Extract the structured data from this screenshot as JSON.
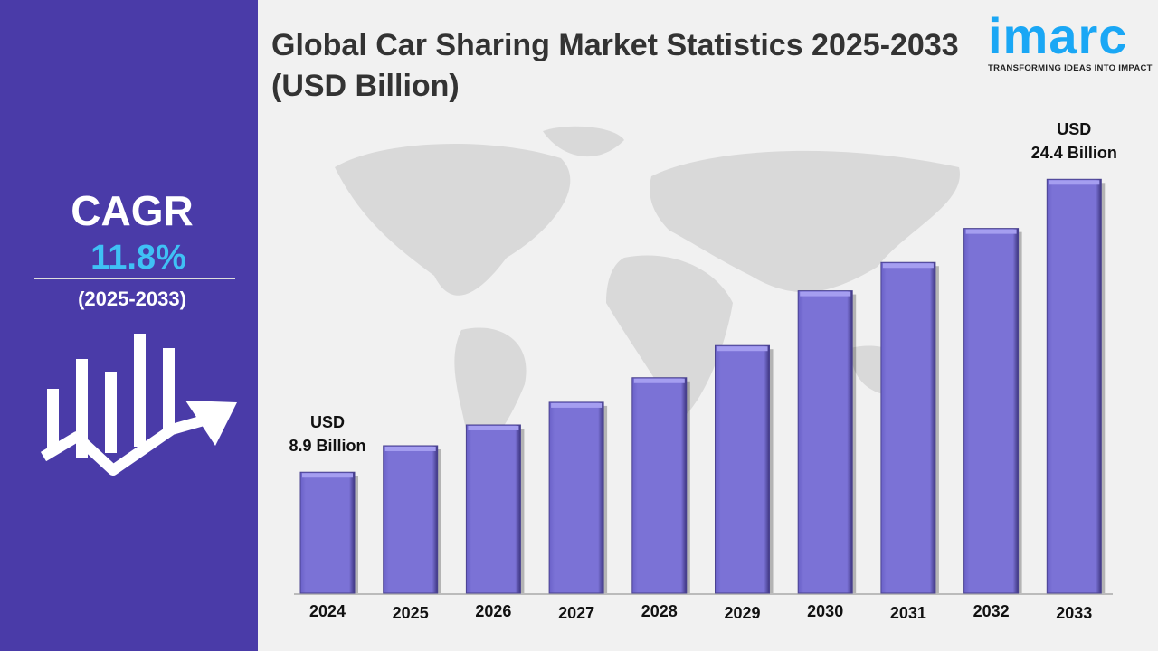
{
  "title": "Global Car Sharing Market Statistics 2025-2033 (USD Billion)",
  "logo": {
    "text": "imarc",
    "tagline": "TRANSFORMING IDEAS INTO IMPACT"
  },
  "cagr": {
    "label": "CAGR",
    "value": "11.8%",
    "period": "(2025-2033)"
  },
  "colors": {
    "panel": "#4a3ba8",
    "bar": "#7b72d6",
    "cagr_value": "#3fc1f5",
    "logo": "#1aa7f5"
  },
  "chart_data": {
    "type": "bar",
    "title": "Global Car Sharing Market Statistics 2025-2033 (USD Billion)",
    "categories": [
      "2024",
      "2025",
      "2026",
      "2027",
      "2028",
      "2029",
      "2030",
      "2031",
      "2032",
      "2033"
    ],
    "values": [
      8.9,
      10.3,
      11.4,
      12.6,
      13.9,
      15.6,
      18.5,
      20.0,
      21.8,
      24.4
    ],
    "annotations": [
      {
        "category": "2024",
        "line1": "USD",
        "line2": "8.9 Billion"
      },
      {
        "category": "2033",
        "line1": "USD",
        "line2": "24.4 Billion"
      }
    ],
    "grid": false
  }
}
